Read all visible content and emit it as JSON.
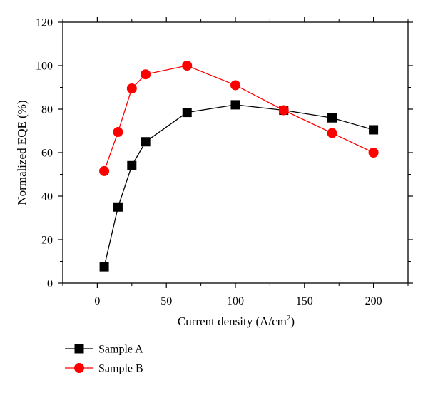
{
  "chart_data": {
    "type": "line",
    "title": "",
    "xlabel": "Current density (A/cm",
    "xlabel_sup": "2",
    "xlabel_close": ")",
    "ylabel": "Normalized EQE (%)",
    "xlim": [
      -25,
      225
    ],
    "ylim": [
      0,
      120
    ],
    "x_ticks": [
      0,
      50,
      100,
      150,
      200
    ],
    "y_ticks": [
      0,
      20,
      40,
      60,
      80,
      100,
      120
    ],
    "x_tick_labels": [
      "0",
      "50",
      "100",
      "150",
      "200"
    ],
    "y_tick_labels": [
      "0",
      "20",
      "40",
      "60",
      "80",
      "100",
      "120"
    ],
    "grid": false,
    "legend_position": "bottom-left, below the plot",
    "series": [
      {
        "name": "Sample A",
        "color": "#000000",
        "marker": "square",
        "x": [
          5,
          15,
          25,
          35,
          65,
          100,
          135,
          170,
          200
        ],
        "y": [
          7.5,
          35,
          54,
          65,
          78.5,
          82,
          79.5,
          76,
          70.5
        ]
      },
      {
        "name": "Sample B",
        "color": "#ff0000",
        "marker": "circle",
        "x": [
          5,
          15,
          25,
          35,
          65,
          100,
          135,
          170,
          200
        ],
        "y": [
          51.5,
          69.5,
          89.5,
          96,
          100,
          91,
          79.5,
          69,
          60
        ]
      }
    ]
  }
}
